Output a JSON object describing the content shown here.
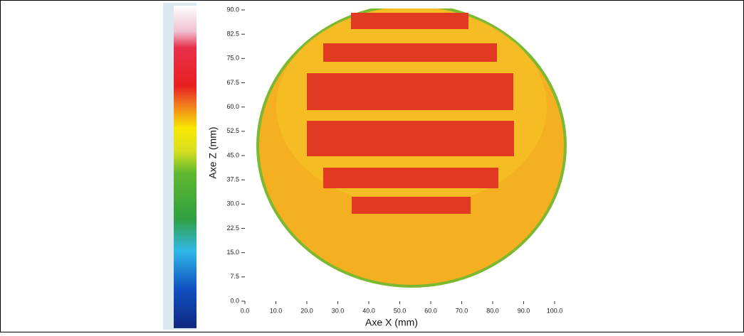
{
  "chart_data": {
    "type": "heatmap",
    "x_label": "Axe X (mm)",
    "y_label": "Axe Z (mm)",
    "xlim": [
      0,
      100
    ],
    "xticks": [
      {
        "value": 0,
        "label": "0.0"
      },
      {
        "value": 10,
        "label": "10.0"
      },
      {
        "value": 20,
        "label": "20.0"
      },
      {
        "value": 30,
        "label": "30.0"
      },
      {
        "value": 40,
        "label": "40.0"
      },
      {
        "value": 50,
        "label": "50.0"
      },
      {
        "value": 60,
        "label": "60.0"
      },
      {
        "value": 70,
        "label": "70.0"
      },
      {
        "value": 80,
        "label": "80.0"
      },
      {
        "value": 90,
        "label": "90.0"
      },
      {
        "value": 100,
        "label": "100.0"
      }
    ],
    "ylim": [
      0,
      90
    ],
    "yticks": [
      {
        "value": 0,
        "label": "0.0"
      },
      7.5,
      {
        "value": 15,
        "label": "15.0"
      },
      22.5,
      {
        "value": 30,
        "label": "30.0"
      },
      37.5,
      {
        "value": 45,
        "label": "45.0"
      },
      52.5,
      {
        "value": 60,
        "label": "60.0"
      },
      67.5,
      {
        "value": 75,
        "label": "75.0"
      },
      82.5,
      {
        "value": 90,
        "label": "90.0"
      }
    ]
  }
}
